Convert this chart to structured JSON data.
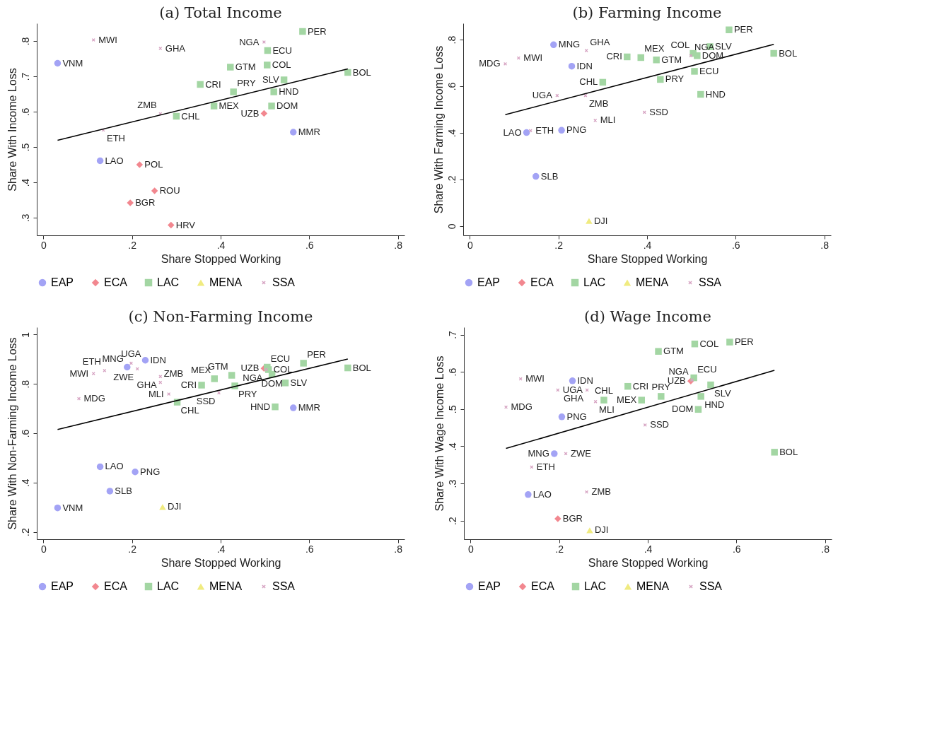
{
  "chart_data": [
    {
      "type": "scatter",
      "title": "(a) Total Income",
      "xlabel": "Share Stopped Working",
      "ylabel": "Share With Income Loss",
      "xlim": [
        -0.015,
        0.815
      ],
      "ylim": [
        0.25,
        0.85
      ],
      "grid": false,
      "legend": "bottom",
      "xticks": [
        0,
        {
          "value": 0.2,
          "label": ".2"
        },
        {
          "value": 0.4,
          "label": ".4"
        },
        {
          "value": 0.6,
          "label": ".6"
        },
        {
          "value": 0.8,
          "label": ".8"
        }
      ],
      "yticks": [
        {
          "value": 0.3,
          "label": ".3"
        },
        {
          "value": 0.4,
          "label": ".4"
        },
        {
          "value": 0.5,
          "label": ".5"
        },
        {
          "value": 0.6,
          "label": ".6"
        },
        {
          "value": 0.7,
          "label": ".7"
        },
        {
          "value": 0.8,
          "label": ".8"
        }
      ],
      "series": [
        {
          "name": "EAP",
          "color": "#a3a3f5",
          "marker": "circle",
          "x": [
            0.032,
            0.564,
            0.128
          ],
          "values": [
            0.737,
            0.542,
            0.461
          ],
          "value_labels": [
            "VNM",
            "MMR",
            "LAO"
          ]
        },
        {
          "name": "ECA",
          "color": "#f2878f",
          "marker": "diamond",
          "x": [
            0.498,
            0.217,
            0.251,
            0.196,
            0.288
          ],
          "values": [
            0.595,
            0.45,
            0.376,
            0.342,
            0.279
          ],
          "value_labels": [
            "UZB",
            "POL",
            "ROU",
            "BGR",
            "HRV"
          ]
        },
        {
          "name": "LAC",
          "color": "#a3d6a3",
          "marker": "square",
          "x": [
            0.585,
            0.506,
            0.505,
            0.422,
            0.687,
            0.543,
            0.354,
            0.429,
            0.52,
            0.385,
            0.515,
            0.3
          ],
          "values": [
            0.827,
            0.773,
            0.732,
            0.726,
            0.711,
            0.69,
            0.677,
            0.656,
            0.656,
            0.616,
            0.616,
            0.587
          ],
          "value_labels": [
            "PER",
            "ECU",
            "COL",
            "GTM",
            "BOL",
            "SLV",
            "CRI",
            "PRY",
            "HND",
            "MEX",
            "DOM",
            "CHL"
          ]
        },
        {
          "name": "MENA",
          "color": "#f0eb80",
          "marker": "triangle"
        },
        {
          "name": "SSA",
          "color": "#d6a3c2",
          "marker": "cross",
          "x": [
            0.113,
            0.264,
            0.498,
            0.264,
            0.135
          ],
          "values": [
            0.803,
            0.779,
            0.797,
            0.594,
            0.548
          ],
          "value_labels": [
            "MWI",
            "GHA",
            "NGA",
            "ZMB",
            "ETH"
          ]
        },
        {
          "type": "line",
          "color": "#000000",
          "x": [
            0.032,
            0.687
          ],
          "values": [
            0.519,
            0.721
          ]
        }
      ]
    },
    {
      "type": "scatter",
      "title": "(b) Farming Income",
      "xlabel": "Share Stopped Working",
      "ylabel": "Share With Farming Income Loss",
      "xlim": [
        -0.015,
        0.815
      ],
      "ylim": [
        -0.04,
        0.87
      ],
      "grid": false,
      "legend": "bottom",
      "xticks": [
        0,
        {
          "value": 0.2,
          "label": ".2"
        },
        {
          "value": 0.4,
          "label": ".4"
        },
        {
          "value": 0.6,
          "label": ".6"
        },
        {
          "value": 0.8,
          "label": ".8"
        }
      ],
      "yticks": [
        0,
        {
          "value": 0.2,
          "label": ".2"
        },
        {
          "value": 0.4,
          "label": ".4"
        },
        {
          "value": 0.6,
          "label": ".6"
        },
        {
          "value": 0.8,
          "label": ".8"
        }
      ],
      "series": [
        {
          "name": "EAP",
          "color": "#a3a3f5",
          "marker": "circle",
          "x": [
            0.189,
            0.23,
            0.128,
            0.207,
            0.149
          ],
          "values": [
            0.778,
            0.686,
            0.401,
            0.411,
            0.213
          ],
          "value_labels": [
            "MNG",
            "IDN",
            "LAO",
            "PNG",
            "SLB"
          ]
        },
        {
          "name": "ECA",
          "color": "#f2878f",
          "marker": "diamond"
        },
        {
          "name": "LAC",
          "color": "#a3d6a3",
          "marker": "square",
          "x": [
            0.585,
            0.542,
            0.686,
            0.355,
            0.386,
            0.421,
            0.504,
            0.513,
            0.507,
            0.3,
            0.43,
            0.521
          ],
          "values": [
            0.842,
            0.77,
            0.741,
            0.726,
            0.723,
            0.713,
            0.741,
            0.731,
            0.664,
            0.617,
            0.629,
            0.565
          ],
          "value_labels": [
            "PER",
            "SLV",
            "BOL",
            "CRI",
            "MEX",
            "GTM",
            "COL",
            "DOM",
            "ECU",
            "CHL",
            "PRY",
            "HND"
          ]
        },
        {
          "name": "MENA",
          "color": "#f0eb80",
          "marker": "triangle",
          "x": [
            0.269
          ],
          "values": [
            0.022
          ],
          "value_labels": [
            "DJI"
          ]
        },
        {
          "name": "SSA",
          "color": "#d6a3c2",
          "marker": "cross",
          "x": [
            0.11,
            0.08,
            0.263,
            0.499,
            0.197,
            0.261,
            0.394,
            0.283,
            0.137
          ],
          "values": [
            0.721,
            0.696,
            0.753,
            0.731,
            0.56,
            0.56,
            0.488,
            0.453,
            0.409
          ],
          "value_labels": [
            "MWI",
            "MDG",
            "GHA",
            "NGA",
            "UGA",
            "ZMB",
            "SSD",
            "MLI",
            "ETH"
          ]
        },
        {
          "type": "line",
          "color": "#000000",
          "x": [
            0.08,
            0.686
          ],
          "values": [
            0.478,
            0.78
          ]
        }
      ]
    },
    {
      "type": "scatter",
      "title": "(c) Non-Farming Income",
      "xlabel": "Share Stopped Working",
      "ylabel": "Share With Non-Farming Income Loss",
      "xlim": [
        -0.015,
        0.815
      ],
      "ylim": [
        0.17,
        1.03
      ],
      "grid": false,
      "legend": "bottom",
      "xticks": [
        0,
        {
          "value": 0.2,
          "label": ".2"
        },
        {
          "value": 0.4,
          "label": ".4"
        },
        {
          "value": 0.6,
          "label": ".6"
        },
        {
          "value": 0.8,
          "label": ".8"
        }
      ],
      "yticks": [
        {
          "value": 0.2,
          "label": ".2"
        },
        {
          "value": 0.4,
          "label": ".4"
        },
        {
          "value": 0.6,
          "label": ".6"
        },
        {
          "value": 0.8,
          "label": ".8"
        },
        1
      ],
      "series": [
        {
          "name": "EAP",
          "color": "#a3a3f5",
          "marker": "circle",
          "x": [
            0.23,
            0.189,
            0.564,
            0.128,
            0.207,
            0.15,
            0.032
          ],
          "values": [
            0.896,
            0.868,
            0.703,
            0.464,
            0.443,
            0.365,
            0.297
          ],
          "value_labels": [
            "IDN",
            "MNG",
            "MMR",
            "LAO",
            "PNG",
            "SLB",
            "VNM"
          ]
        },
        {
          "name": "ECA",
          "color": "#f2878f",
          "marker": "diamond",
          "x": [
            0.498
          ],
          "values": [
            0.863
          ],
          "value_labels": [
            "UZB"
          ]
        },
        {
          "name": "LAC",
          "color": "#a3d6a3",
          "marker": "square",
          "x": [
            0.505,
            0.508,
            0.516,
            0.587,
            0.687,
            0.546,
            0.523,
            0.357,
            0.386,
            0.425,
            0.432,
            0.302
          ],
          "values": [
            0.868,
            0.858,
            0.839,
            0.884,
            0.865,
            0.804,
            0.707,
            0.795,
            0.821,
            0.835,
            0.792,
            0.726
          ],
          "value_labels": [
            "ECU",
            "COL",
            "DOM",
            "PER",
            "BOL",
            "SLV",
            "HND",
            "CRI",
            "MEX",
            "GTM",
            "PRY",
            "CHL"
          ]
        },
        {
          "name": "MENA",
          "color": "#f0eb80",
          "marker": "triangle",
          "x": [
            0.269
          ],
          "values": [
            0.301
          ],
          "value_labels": [
            "DJI"
          ]
        },
        {
          "name": "SSA",
          "color": "#d6a3c2",
          "marker": "cross",
          "x": [
            0.198,
            0.212,
            0.138,
            0.113,
            0.264,
            0.264,
            0.08,
            0.283,
            0.396,
            0.503
          ],
          "values": [
            0.884,
            0.861,
            0.854,
            0.842,
            0.83,
            0.806,
            0.74,
            0.759,
            0.764,
            0.858
          ],
          "value_labels": [
            "UGA",
            "ZWE",
            "ETH",
            "MWI",
            "GHA",
            "ZMB",
            "MDG",
            "MLI",
            "SSD",
            "NGA"
          ]
        },
        {
          "type": "line",
          "color": "#000000",
          "x": [
            0.032,
            0.687
          ],
          "values": [
            0.615,
            0.901
          ]
        }
      ]
    },
    {
      "type": "scatter",
      "title": "(d) Wage Income",
      "xlabel": "Share Stopped Working",
      "ylabel": "Share With Wage Income Loss",
      "xlim": [
        -0.015,
        0.815
      ],
      "ylim": [
        0.15,
        0.72
      ],
      "grid": false,
      "legend": "bottom",
      "xticks": [
        0,
        {
          "value": 0.2,
          "label": ".2"
        },
        {
          "value": 0.4,
          "label": ".4"
        },
        {
          "value": 0.6,
          "label": ".6"
        },
        {
          "value": 0.8,
          "label": ".8"
        }
      ],
      "yticks": [
        {
          "value": 0.2,
          "label": ".2"
        },
        {
          "value": 0.3,
          "label": ".3"
        },
        {
          "value": 0.4,
          "label": ".4"
        },
        {
          "value": 0.5,
          "label": ".5"
        },
        {
          "value": 0.6,
          "label": ".6"
        },
        {
          "value": 0.7,
          "label": ".7"
        }
      ],
      "series": [
        {
          "name": "EAP",
          "color": "#a3a3f5",
          "marker": "circle",
          "x": [
            0.23,
            0.206,
            0.189,
            0.13
          ],
          "values": [
            0.576,
            0.479,
            0.38,
            0.27
          ],
          "value_labels": [
            "IDN",
            "PNG",
            "MNG",
            "LAO"
          ]
        },
        {
          "name": "ECA",
          "color": "#f2878f",
          "marker": "diamond",
          "x": [
            0.497,
            0.197
          ],
          "values": [
            0.575,
            0.205
          ],
          "value_labels": [
            "UZB",
            "BGR"
          ]
        },
        {
          "name": "LAC",
          "color": "#a3d6a3",
          "marker": "square",
          "x": [
            0.506,
            0.585,
            0.424,
            0.504,
            0.542,
            0.355,
            0.43,
            0.52,
            0.386,
            0.301,
            0.514,
            0.686
          ],
          "values": [
            0.675,
            0.68,
            0.655,
            0.584,
            0.565,
            0.561,
            0.534,
            0.534,
            0.524,
            0.524,
            0.499,
            0.384
          ],
          "value_labels": [
            "COL",
            "PER",
            "GTM",
            "ECU",
            "SLV",
            "CRI",
            "PRY",
            "HND",
            "MEX",
            "CHL",
            "DOM",
            "BOL"
          ]
        },
        {
          "name": "MENA",
          "color": "#f0eb80",
          "marker": "triangle",
          "x": [
            0.269
          ],
          "values": [
            0.174
          ],
          "value_labels": [
            "DJI"
          ]
        },
        {
          "name": "SSA",
          "color": "#d6a3c2",
          "marker": "cross",
          "x": [
            0.113,
            0.5,
            0.197,
            0.263,
            0.282,
            0.08,
            0.394,
            0.215,
            0.138,
            0.262
          ],
          "values": [
            0.581,
            0.578,
            0.551,
            0.551,
            0.52,
            0.505,
            0.457,
            0.38,
            0.344,
            0.277
          ],
          "value_labels": [
            "MWI",
            "NGA",
            "UGA",
            "GHA",
            "MLI",
            "MDG",
            "SSD",
            "ZWE",
            "ETH",
            "ZMB"
          ]
        },
        {
          "type": "line",
          "color": "#000000",
          "x": [
            0.08,
            0.686
          ],
          "values": [
            0.394,
            0.604
          ]
        }
      ]
    }
  ]
}
